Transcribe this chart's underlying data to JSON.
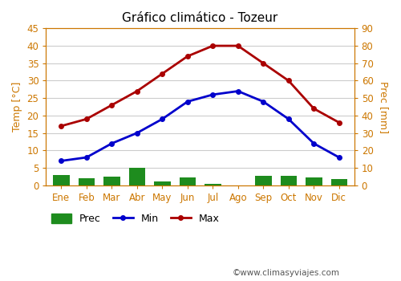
{
  "title": "Gráfico climático - Tozeur",
  "months": [
    "Ene",
    "Feb",
    "Mar",
    "Abr",
    "May",
    "Jun",
    "Jul",
    "Ago",
    "Sep",
    "Oct",
    "Nov",
    "Dic"
  ],
  "temp_max": [
    17,
    19,
    23,
    27,
    32,
    37,
    40,
    40,
    35,
    30,
    22,
    18
  ],
  "temp_min": [
    7,
    8,
    12,
    15,
    19,
    24,
    26,
    27,
    24,
    19,
    12,
    8
  ],
  "prec": [
    6,
    4,
    5,
    10,
    2,
    4.5,
    1,
    0,
    5.5,
    5.5,
    4.5,
    3.5
  ],
  "temp_ylim": [
    0,
    45
  ],
  "prec_ylim": [
    0,
    90
  ],
  "temp_yticks": [
    0,
    5,
    10,
    15,
    20,
    25,
    30,
    35,
    40,
    45
  ],
  "prec_yticks": [
    0,
    10,
    20,
    30,
    40,
    50,
    60,
    70,
    80,
    90
  ],
  "ylabel_left": "Temp [°C]",
  "ylabel_right": "Prec [mm]",
  "bar_color": "#1e8c1e",
  "line_min_color": "#0000cc",
  "line_max_color": "#aa0000",
  "bg_color": "#ffffff",
  "plot_bg_color": "#ffffff",
  "grid_color": "#cccccc",
  "axis_label_color": "#cc7700",
  "tick_color": "#cc7700",
  "watermark": "©www.climasyviajes.com",
  "legend_prec": "Prec",
  "legend_min": "Min",
  "legend_max": "Max"
}
